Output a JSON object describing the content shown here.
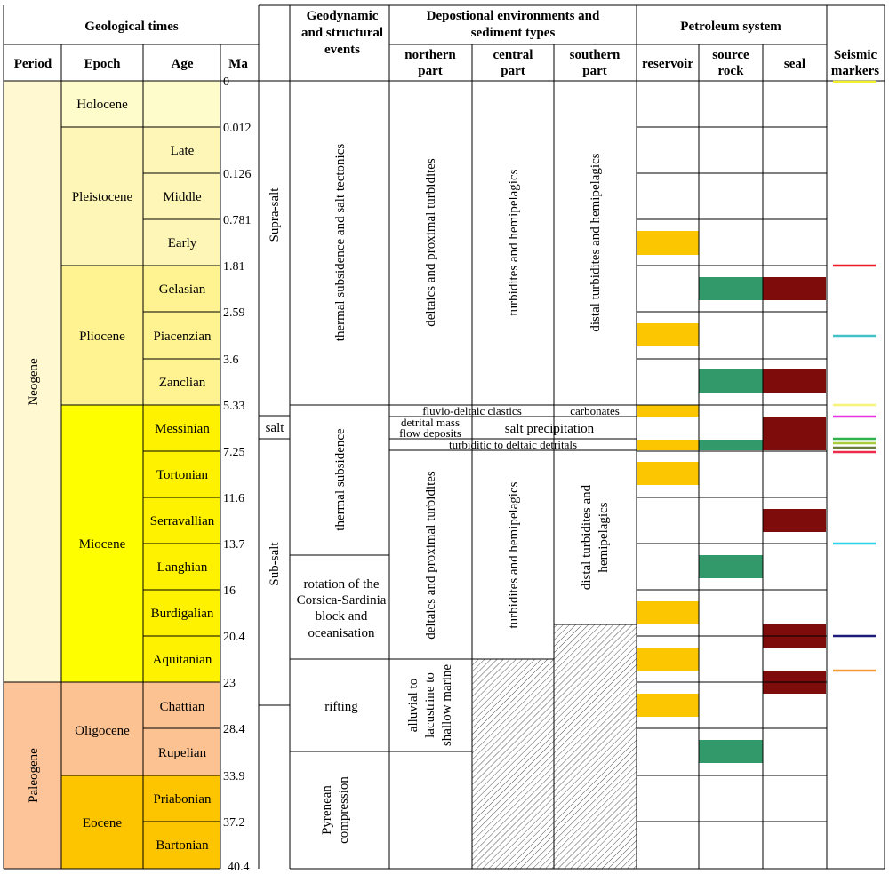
{
  "headers": {
    "geological_times": "Geological times",
    "period": "Period",
    "epoch": "Epoch",
    "age": "Age",
    "ma": "Ma",
    "geodynamic_line1": "Geodynamic",
    "geodynamic_line2": "and structural",
    "geodynamic_line3": "events",
    "depositional_line1": "Depostional environments and",
    "depositional_line2": "sediment types",
    "northern_line1": "northern",
    "northern_line2": "part",
    "central_line1": "central",
    "central_line2": "part",
    "southern_line1": "southern",
    "southern_line2": "part",
    "petroleum_system": "Petroleum system",
    "reservoir": "reservoir",
    "source_line1": "source",
    "source_line2": "rock",
    "seal": "seal",
    "seismic_line1": "Seismic",
    "seismic_line2": "markers"
  },
  "periods": [
    "Neogene",
    "Paleogene"
  ],
  "epochs": [
    "Holocene",
    "Pleistocene",
    "Pliocene",
    "Miocene",
    "Oligocene",
    "Eocene"
  ],
  "ages": [
    "Late",
    "Middle",
    "Early",
    "Gelasian",
    "Piacenzian",
    "Zanclian",
    "Messinian",
    "Tortonian",
    "Serravallian",
    "Langhian",
    "Burdigalian",
    "Aquitanian",
    "Chattian",
    "Rupelian",
    "Priabonian",
    "Bartonian"
  ],
  "ma_ticks": [
    "0",
    "0.012",
    "0.126",
    "0.781",
    "1.81",
    "2.59",
    "3.6",
    "5.33",
    "7.25",
    "11.6",
    "13.7",
    "16",
    "20.4",
    "23",
    "28.4",
    "33.9",
    "37.2",
    "40.4"
  ],
  "salt_units": [
    "Supra-salt",
    "salt",
    "Sub-salt"
  ],
  "events": {
    "thermal_salt": "thermal subsidence and salt tectonics",
    "thermal": "thermal subsidence",
    "rotation_line1": "rotation of the",
    "rotation_line2": "Corsica-Sardinia",
    "rotation_line3": "block and",
    "rotation_line4": "oceanisation",
    "rifting": "rifting",
    "pyrenean_line1": "Pyrenean",
    "pyrenean_line2": "compression"
  },
  "depositional": {
    "north_upper": "deltaics and proximal turbidites",
    "central_upper": "turbidites and hemipelagics",
    "south_upper": "distal turbidites and hemipelagics",
    "fluvio": "fluvio-deltaic clastics",
    "carbonates": "carbonates",
    "detrital_line1": "detrital mass",
    "detrital_line2": "flow deposits",
    "salt_precip": "salt precipitation",
    "turbiditic": "turbiditic to deltaic detritals",
    "north_lower": "deltaics and proximal turbidites",
    "central_lower": "turbidites and hemipelagics",
    "south_lower_line1": "distal turbidites and",
    "south_lower_line2": "hemipelagics",
    "alluvial_line1": "alluvial to",
    "alluvial_line2": "lacustrine to",
    "alluvial_line3": "shallow marine"
  },
  "colors": {
    "neogene": "#fff8d0",
    "holocene": "#fefcca",
    "pleistocene": "#fef6b6",
    "pliocene": "#fef291",
    "miocene": "#fefe00",
    "miocene_age": "#fef200",
    "paleogene": "#fdc49a",
    "oligocene": "#fdc291",
    "eocene": "#fdc400",
    "reservoir": "#fcc700",
    "source": "#31996a",
    "seal": "#7e0c0b"
  },
  "seismic_markers": [
    {
      "color": "#f4f02e"
    },
    {
      "color": "#ee1c24"
    },
    {
      "color": "#44c2c8"
    },
    {
      "color": "#f7f27a"
    },
    {
      "color": "#ea31e8"
    },
    {
      "color": "#2eb34b"
    },
    {
      "color": "#a8cd3a"
    },
    {
      "color": "#6b7d3d"
    },
    {
      "color": "#ee2a4a"
    },
    {
      "color": "#2ad4ec"
    },
    {
      "color": "#1d1b7c"
    },
    {
      "color": "#f59a3a"
    }
  ]
}
